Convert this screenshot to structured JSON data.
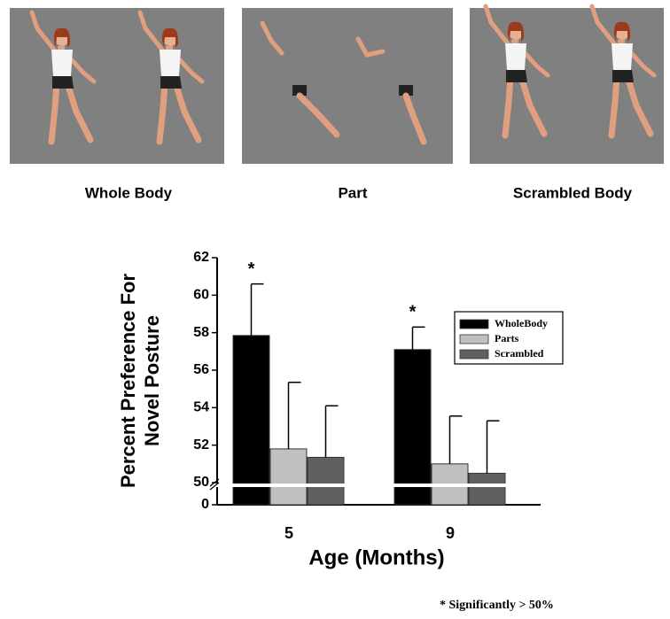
{
  "panels": [
    "Whole Body",
    "Part",
    "Scrambled Body"
  ],
  "footnote": "* Significantly > 50%",
  "chart_data": {
    "type": "bar",
    "x_label": "Age (Months)",
    "y_label": [
      "Percent Preference For",
      "Novel Posture"
    ],
    "categories": [
      "5",
      "9"
    ],
    "series": [
      {
        "name": "WholeBody",
        "color": "#000000",
        "values": [
          57.85,
          57.1
        ],
        "errors": [
          2.75,
          1.2
        ]
      },
      {
        "name": "Parts",
        "color": "#c0c0c0",
        "values": [
          51.8,
          51.0
        ],
        "errors": [
          3.55,
          2.55
        ]
      },
      {
        "name": "Scrambled",
        "color": "#606060",
        "values": [
          51.35,
          50.5
        ],
        "errors": [
          2.75,
          2.8
        ]
      }
    ],
    "significance": [
      "*",
      "*"
    ],
    "ylim": [
      0,
      62
    ],
    "axis_break": [
      0,
      50
    ],
    "yticks": [
      0,
      50,
      52,
      54,
      56,
      58,
      60,
      62
    ],
    "legend": "upper right"
  }
}
